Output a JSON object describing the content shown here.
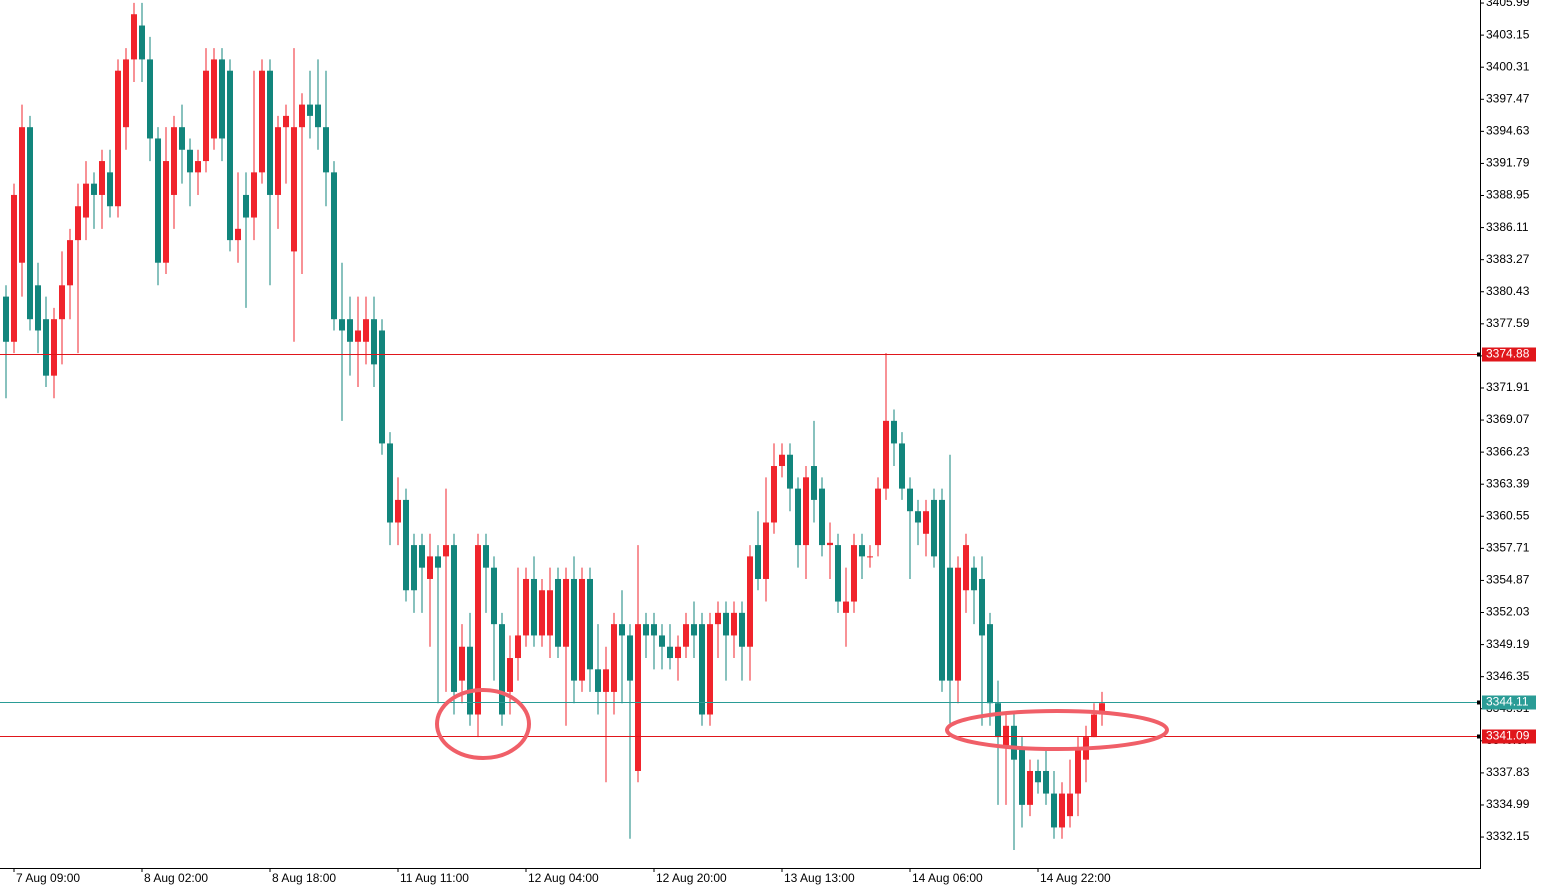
{
  "chart_data": {
    "type": "candlestick",
    "up_color": "#f0242c",
    "down_color": "#12857c",
    "categories": [
      null,
      "7 Aug 09:00",
      null,
      null,
      null,
      null,
      null,
      null,
      null,
      null,
      null,
      null,
      null,
      null,
      null,
      null,
      null,
      "8 Aug 02:00",
      null,
      null,
      null,
      null,
      null,
      null,
      null,
      null,
      null,
      null,
      null,
      null,
      null,
      null,
      null,
      "8 Aug 18:00",
      null,
      null,
      null,
      null,
      null,
      null,
      null,
      null,
      null,
      null,
      null,
      null,
      null,
      null,
      null,
      "11 Aug 11:00",
      null,
      null,
      null,
      null,
      null,
      null,
      null,
      null,
      null,
      null,
      null,
      null,
      null,
      null,
      null,
      "12 Aug 04:00",
      null,
      null,
      null,
      null,
      null,
      null,
      null,
      null,
      null,
      null,
      null,
      null,
      null,
      null,
      null,
      "12 Aug 20:00",
      null,
      null,
      null,
      null,
      null,
      null,
      null,
      null,
      null,
      null,
      null,
      null,
      null,
      null,
      null,
      "13 Aug 13:00",
      null,
      null,
      null,
      null,
      null,
      null,
      null,
      null,
      null,
      null,
      null,
      null,
      null,
      null,
      null,
      "14 Aug 06:00",
      null,
      null,
      null,
      null,
      null,
      null,
      null,
      null,
      null,
      null,
      null,
      null,
      null,
      null,
      null,
      "14 Aug 22:00",
      null,
      null,
      null,
      null,
      null,
      null,
      null,
      null
    ],
    "open": [
      3380,
      3376,
      3383,
      3395,
      3381,
      3378,
      3373,
      3378,
      3381,
      3385,
      3387,
      3390,
      3389,
      3391,
      3388,
      3395,
      3401,
      3404,
      3401,
      3394,
      3383,
      3389,
      3395,
      3393,
      3391,
      3392,
      3394,
      3401,
      3400,
      3385,
      3389,
      3387,
      3391,
      3400,
      3389,
      3395,
      3384,
      3395,
      3397,
      3397,
      3395,
      3391,
      3378,
      3378,
      3376,
      3376,
      3378,
      3377,
      3367,
      3360,
      3362,
      3358,
      3358,
      3355,
      3357,
      3357,
      3358,
      3346,
      3349,
      3343,
      3358,
      3356,
      3351,
      3345,
      3348,
      3350,
      3355,
      3350,
      3350,
      3355,
      3349,
      3355,
      3346,
      3355,
      3347,
      3345,
      3345,
      3351,
      3350,
      3338,
      3351,
      3351,
      3350,
      3349,
      3348,
      3349,
      3351,
      3351,
      3343,
      3351,
      3352,
      3350,
      3352,
      3349,
      3358,
      3355,
      3360,
      3365,
      3366,
      3363,
      3358,
      3365,
      3363,
      3358,
      3358,
      3352,
      3353,
      3358,
      3357,
      3358,
      3363,
      3369,
      3367,
      3363,
      3361,
      3359,
      3362,
      3362,
      3356,
      3346,
      3354,
      3356,
      3355,
      3351,
      3344,
      3340,
      3342,
      3340,
      3335,
      3338,
      3338,
      3336,
      3333,
      3334,
      3336,
      3339,
      3341,
      3343
    ],
    "close": [
      3376,
      3389,
      3395,
      3378,
      3377,
      3373,
      3378,
      3381,
      3385,
      3388,
      3390,
      3389,
      3392,
      3388,
      3400,
      3401,
      3405,
      3401,
      3394,
      3383,
      3392,
      3395,
      3393,
      3391,
      3392,
      3400,
      3401,
      3394,
      3385,
      3386,
      3387,
      3391,
      3400,
      3389,
      3395,
      3396,
      3395,
      3397,
      3396,
      3395,
      3391,
      3378,
      3377,
      3376,
      3377,
      3378,
      3374,
      3367,
      3360,
      3362,
      3354,
      3354,
      3356,
      3357,
      3356,
      3358,
      3345,
      3349,
      3343,
      3358,
      3356,
      3351,
      3343,
      3348,
      3350,
      3355,
      3350,
      3354,
      3354,
      3349,
      3355,
      3346,
      3355,
      3347,
      3345,
      3347,
      3351,
      3350,
      3346,
      3351,
      3350,
      3350,
      3349,
      3348,
      3349,
      3351,
      3350,
      3343,
      3351,
      3352,
      3350,
      3352,
      3349,
      3357,
      3355,
      3360,
      3365,
      3366,
      3363,
      3358,
      3364,
      3362,
      3358,
      3358.2,
      3353,
      3353,
      3358,
      3357,
      3357,
      3363,
      3369,
      3367,
      3363,
      3361,
      3360,
      3361,
      3357,
      3346,
      3346,
      3356,
      3358,
      3354,
      3350,
      3344,
      3341,
      3342,
      3339,
      3335,
      3338,
      3337,
      3336,
      3333,
      3336,
      3336,
      3340,
      3341,
      3343,
      3344
    ],
    "high": [
      3381,
      3390,
      3397,
      3396,
      3383,
      3380,
      3379,
      3384,
      3386,
      3390,
      3392,
      3391,
      3393,
      3393,
      3401,
      3402,
      3406,
      3406,
      3403,
      3395,
      3395,
      3396,
      3397,
      3394,
      3393,
      3402,
      3402,
      3402,
      3401,
      3391,
      3391,
      3400,
      3401,
      3401,
      3396,
      3397,
      3402,
      3398,
      3400,
      3401,
      3400,
      3392,
      3383,
      3380,
      3380,
      3380,
      3380,
      3378,
      3368,
      3364,
      3363,
      3359,
      3359,
      3359,
      3358,
      3363,
      3359,
      3351,
      3352,
      3359,
      3359,
      3357,
      3352,
      3350,
      3356,
      3356,
      3357,
      3355,
      3356,
      3356,
      3356,
      3357,
      3356,
      3356,
      3351,
      3349,
      3352,
      3354,
      3351,
      3358,
      3352,
      3352,
      3351,
      3351,
      3350,
      3352,
      3353,
      3352,
      3352,
      3353,
      3353,
      3353,
      3353,
      3358,
      3361,
      3364,
      3367,
      3367,
      3367,
      3364,
      3365,
      3369,
      3364,
      3360,
      3359,
      3356,
      3359,
      3359,
      3358,
      3364,
      3375,
      3370,
      3368,
      3364,
      3362,
      3362,
      3363,
      3363,
      3366,
      3357,
      3359,
      3357,
      3357,
      3352,
      3346,
      3343,
      3343,
      3341,
      3339,
      3339,
      3340,
      3338,
      3337,
      3339,
      3341,
      3342,
      3344,
      3345
    ],
    "low": [
      3371,
      3375,
      3380,
      3377,
      3375,
      3372,
      3371,
      3374,
      3378,
      3375,
      3385,
      3386,
      3386,
      3387,
      3387,
      3393,
      3399,
      3399,
      3392,
      3381,
      3382,
      3386,
      3390,
      3388,
      3389,
      3391,
      3393,
      3392,
      3384,
      3383,
      3379,
      3385,
      3390,
      3381,
      3386,
      3390,
      3376,
      3382,
      3394,
      3393,
      3388,
      3377,
      3369,
      3373,
      3372,
      3374,
      3372,
      3366,
      3358,
      3358,
      3353,
      3352,
      3352,
      3349,
      3344,
      3345,
      3343,
      3344,
      3342,
      3341,
      3352,
      3346,
      3342,
      3343,
      3346,
      3349,
      3349,
      3349,
      3348,
      3348,
      3342,
      3344,
      3345,
      3345,
      3343,
      3337,
      3343,
      3344,
      3332,
      3337,
      3348,
      3347,
      3347,
      3347,
      3346,
      3348,
      3348,
      3342,
      3342,
      3348,
      3346,
      3348,
      3346,
      3346,
      3354,
      3353,
      3359,
      3364,
      3361,
      3356,
      3355,
      3360,
      3357,
      3355,
      3352,
      3349,
      3352,
      3355,
      3356,
      3357,
      3362,
      3365,
      3362,
      3355,
      3358,
      3357,
      3356,
      3345,
      3342,
      3344,
      3352,
      3351,
      3342,
      3342,
      3335,
      3335,
      3331,
      3333,
      3334,
      3336,
      3335,
      3332,
      3332,
      3333,
      3334,
      3337,
      3341,
      3342
    ],
    "ylim": [
      3329.41,
      3406.26
    ],
    "yticks": [
      3405.99,
      3403.15,
      3400.31,
      3397.47,
      3394.63,
      3391.79,
      3388.95,
      3386.11,
      3383.27,
      3380.43,
      3377.59,
      3374.75,
      3371.91,
      3369.07,
      3366.23,
      3363.39,
      3360.55,
      3357.71,
      3354.87,
      3352.03,
      3349.19,
      3346.35,
      3343.51,
      3340.67,
      3337.83,
      3334.99,
      3332.15
    ],
    "price_lines": [
      {
        "value": 3374.88,
        "color": "#e0161b"
      },
      {
        "value": 3344.11,
        "color": "#2a9c96"
      },
      {
        "value": 3341.09,
        "color": "#e0161b"
      }
    ]
  }
}
